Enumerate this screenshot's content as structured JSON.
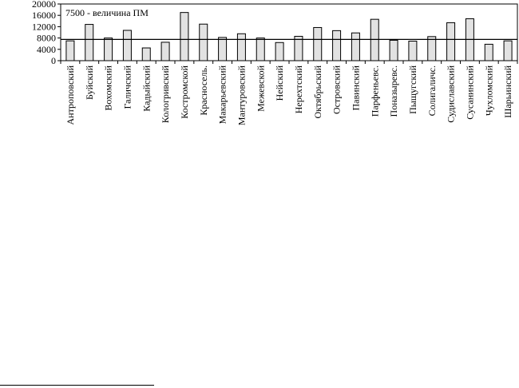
{
  "chart_data": {
    "type": "bar",
    "categories": [
      "Антроповский",
      "Буйский",
      "Вохомский",
      "Галичский",
      "Кадыйский",
      "Кологривский",
      "Костромской",
      "Красносель.",
      "Макарьевский",
      "Мантуровский",
      "Межевской",
      "Нейский",
      "Нерехтский",
      "Октябрьский",
      "Островский",
      "Павинский",
      "Парфеньевс.",
      "Поназыревс.",
      "Пыщугский",
      "Солигаличс.",
      "Судиславский",
      "Сусанинский",
      "Чухломский",
      "Шарьинский"
    ],
    "values": [
      7000,
      12800,
      8000,
      10700,
      4500,
      6500,
      17000,
      12900,
      8200,
      9500,
      8000,
      6400,
      8600,
      11700,
      10600,
      9800,
      14600,
      7200,
      6900,
      8500,
      13400,
      14800,
      5800,
      7000
    ],
    "ylim": [
      0,
      20000
    ],
    "yticks": [
      0,
      4000,
      8000,
      12000,
      16000,
      20000
    ],
    "reference_line": {
      "value": 7500,
      "label": "7500 - величина ПМ"
    },
    "colors": {
      "bar_fill": "#e2e2e2",
      "bar_stroke": "#000000",
      "axis": "#000000"
    },
    "grid": false,
    "legend": "none"
  }
}
